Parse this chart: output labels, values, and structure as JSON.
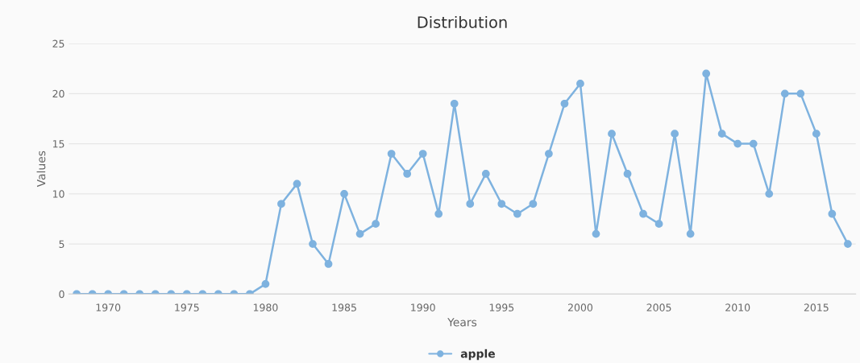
{
  "chart_data": {
    "type": "line",
    "title": "Distribution",
    "xlabel": "Years",
    "ylabel": "Values",
    "x": [
      1968,
      1969,
      1970,
      1971,
      1972,
      1973,
      1974,
      1975,
      1976,
      1977,
      1978,
      1979,
      1980,
      1981,
      1982,
      1983,
      1984,
      1985,
      1986,
      1987,
      1988,
      1989,
      1990,
      1991,
      1992,
      1993,
      1994,
      1995,
      1996,
      1997,
      1998,
      1999,
      2000,
      2001,
      2002,
      2003,
      2004,
      2005,
      2006,
      2007,
      2008,
      2009,
      2010,
      2011,
      2012,
      2013,
      2014,
      2015,
      2016,
      2017
    ],
    "series": [
      {
        "name": "apple",
        "color": "#7eb2df",
        "values": [
          0,
          0,
          0,
          0,
          0,
          0,
          0,
          0,
          0,
          0,
          0,
          0,
          1,
          9,
          11,
          5,
          3,
          10,
          6,
          7,
          14,
          12,
          14,
          8,
          19,
          9,
          12,
          9,
          8,
          9,
          14,
          19,
          21,
          6,
          16,
          12,
          8,
          7,
          16,
          6,
          22,
          16,
          15,
          15,
          10,
          20,
          20,
          16,
          8,
          5
        ]
      }
    ],
    "xlim": [
      1967.5,
      2017.5
    ],
    "xticks": [
      1970,
      1975,
      1980,
      1985,
      1990,
      1995,
      2000,
      2005,
      2010,
      2015
    ],
    "ylim": [
      0,
      25
    ],
    "yticks": [
      0,
      5,
      10,
      15,
      20,
      25
    ],
    "grid": "y",
    "legend": "bottom",
    "marker": "circle",
    "line_style": "solid"
  }
}
